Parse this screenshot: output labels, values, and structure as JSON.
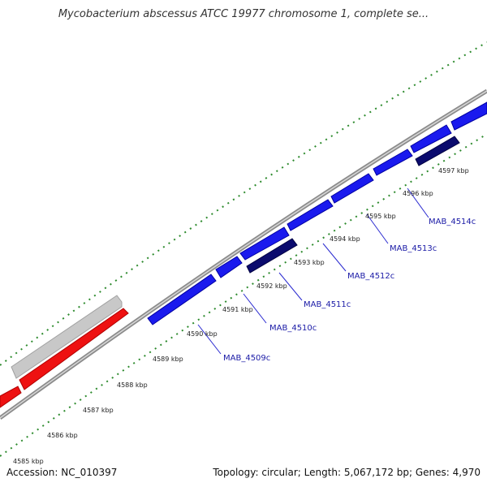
{
  "title": "Mycobacterium abscessus ATCC 19977 chromosome 1, complete se...",
  "accession": "Accession: NC_010397",
  "summary": "Topology: circular; Length: 5,067,172 bp; Genes: 4,970",
  "colors": {
    "backbone": "#8c8c8c",
    "dots": "#2e8b2e",
    "gene_forward_gray": "#c8c8c8",
    "gene_red": "#ee1111",
    "gene_blue": "#1a1aee",
    "gene_navy": "#0b0b6e",
    "label_line": "#2a2ad0"
  },
  "ticks": [
    "4585 kbp",
    "4586 kbp",
    "4587 kbp",
    "4588 kbp",
    "4589 kbp",
    "4590 kbp",
    "4591 kbp",
    "4592 kbp",
    "4593 kbp",
    "4594 kbp",
    "4595 kbp",
    "4596 kbp",
    "4597 kbp"
  ],
  "gene_labels": [
    "MAB_4509c",
    "MAB_4510c",
    "MAB_4511c",
    "MAB_4512c",
    "MAB_4513c",
    "MAB_4514c"
  ]
}
